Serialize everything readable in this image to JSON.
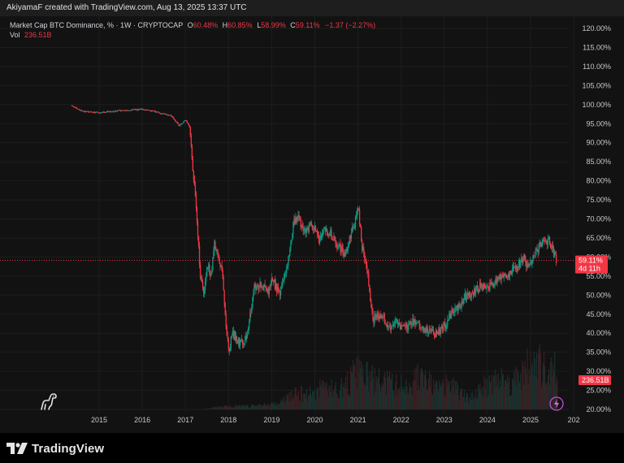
{
  "header": {
    "credit": "AkiyamaF created with TradingView.com, Aug 13, 2025 13:37 UTC"
  },
  "legend": {
    "title": "Market Cap BTC Dominance, % · 1W · CRYPTOCAP",
    "open_key": "O",
    "open_value": "60.48%",
    "high_key": "H",
    "high_value": "60.85%",
    "low_key": "L",
    "low_value": "58.99%",
    "close_key": "C",
    "close_value": "59.11%",
    "change": "−1.37 (−2.27%)",
    "vol_key": "Vol",
    "vol_value": "236.51B"
  },
  "price_tag": {
    "value": "59.11%",
    "countdown": "4d 11h"
  },
  "volume_tag": "236.51B",
  "footer": {
    "brand": "TradingView"
  },
  "colors": {
    "up": "#089981",
    "down": "#f23645",
    "background": "#121212",
    "grid": "#1d1d1d"
  },
  "icons": {
    "bottom_left": "dinosaur-icon",
    "bottom_right": "lightning-icon",
    "footer": "tradingview-logo-icon"
  },
  "chart_data": {
    "type": "candlestick",
    "y_ticks": [
      "120.00%",
      "115.00%",
      "110.00%",
      "105.00%",
      "100.00%",
      "95.00%",
      "90.00%",
      "85.00%",
      "80.00%",
      "75.00%",
      "70.00%",
      "65.00%",
      "60.00%",
      "55.00%",
      "50.00%",
      "45.00%",
      "40.00%",
      "35.00%",
      "30.00%",
      "25.00%",
      "20.00%"
    ],
    "x_ticks": [
      "2015",
      "2016",
      "2017",
      "2018",
      "2019",
      "2020",
      "2021",
      "2022",
      "2023",
      "2024",
      "2025",
      "202"
    ],
    "ylim": [
      20,
      120
    ],
    "price_line": 59.11,
    "dominance_series": [
      {
        "date": "2014-05",
        "value": 99.8
      },
      {
        "date": "2014-08",
        "value": 98.3
      },
      {
        "date": "2015-01",
        "value": 97.9
      },
      {
        "date": "2015-06",
        "value": 98.4
      },
      {
        "date": "2016-01",
        "value": 98.8
      },
      {
        "date": "2016-05",
        "value": 98.0
      },
      {
        "date": "2016-09",
        "value": 97.0
      },
      {
        "date": "2016-11",
        "value": 94.5
      },
      {
        "date": "2017-01",
        "value": 96.0
      },
      {
        "date": "2017-02",
        "value": 94.0
      },
      {
        "date": "2017-03",
        "value": 82.0
      },
      {
        "date": "2017-04",
        "value": 71.0
      },
      {
        "date": "2017-05",
        "value": 55.0
      },
      {
        "date": "2017-06",
        "value": 51.0
      },
      {
        "date": "2017-07",
        "value": 58.0
      },
      {
        "date": "2017-08",
        "value": 55.0
      },
      {
        "date": "2017-09",
        "value": 64.0
      },
      {
        "date": "2017-10",
        "value": 60.0
      },
      {
        "date": "2017-11",
        "value": 57.0
      },
      {
        "date": "2017-12",
        "value": 43.0
      },
      {
        "date": "2018-01",
        "value": 35.5
      },
      {
        "date": "2018-02",
        "value": 40.0
      },
      {
        "date": "2018-04",
        "value": 37.5
      },
      {
        "date": "2018-06",
        "value": 39.0
      },
      {
        "date": "2018-08",
        "value": 52.0
      },
      {
        "date": "2018-10",
        "value": 52.5
      },
      {
        "date": "2018-12",
        "value": 51.0
      },
      {
        "date": "2019-01",
        "value": 54.0
      },
      {
        "date": "2019-03",
        "value": 50.5
      },
      {
        "date": "2019-05",
        "value": 57.0
      },
      {
        "date": "2019-06",
        "value": 63.0
      },
      {
        "date": "2019-07",
        "value": 69.0
      },
      {
        "date": "2019-08",
        "value": 70.5
      },
      {
        "date": "2019-10",
        "value": 67.0
      },
      {
        "date": "2019-12",
        "value": 68.0
      },
      {
        "date": "2020-01",
        "value": 67.0
      },
      {
        "date": "2020-02",
        "value": 64.0
      },
      {
        "date": "2020-03",
        "value": 67.0
      },
      {
        "date": "2020-05",
        "value": 66.5
      },
      {
        "date": "2020-07",
        "value": 63.5
      },
      {
        "date": "2020-09",
        "value": 60.5
      },
      {
        "date": "2020-10",
        "value": 63.0
      },
      {
        "date": "2020-12",
        "value": 69.0
      },
      {
        "date": "2021-01",
        "value": 73.0
      },
      {
        "date": "2021-02",
        "value": 62.0
      },
      {
        "date": "2021-03",
        "value": 60.0
      },
      {
        "date": "2021-05",
        "value": 43.0
      },
      {
        "date": "2021-06",
        "value": 45.0
      },
      {
        "date": "2021-08",
        "value": 44.5
      },
      {
        "date": "2021-09",
        "value": 41.0
      },
      {
        "date": "2021-11",
        "value": 43.0
      },
      {
        "date": "2022-01",
        "value": 41.5
      },
      {
        "date": "2022-03",
        "value": 42.0
      },
      {
        "date": "2022-05",
        "value": 43.5
      },
      {
        "date": "2022-07",
        "value": 41.5
      },
      {
        "date": "2022-09",
        "value": 40.5
      },
      {
        "date": "2022-11",
        "value": 40.0
      },
      {
        "date": "2023-01",
        "value": 42.0
      },
      {
        "date": "2023-03",
        "value": 46.0
      },
      {
        "date": "2023-05",
        "value": 47.0
      },
      {
        "date": "2023-07",
        "value": 50.0
      },
      {
        "date": "2023-09",
        "value": 50.5
      },
      {
        "date": "2023-11",
        "value": 52.5
      },
      {
        "date": "2024-01",
        "value": 52.0
      },
      {
        "date": "2024-03",
        "value": 53.5
      },
      {
        "date": "2024-05",
        "value": 55.0
      },
      {
        "date": "2024-07",
        "value": 55.5
      },
      {
        "date": "2024-09",
        "value": 57.5
      },
      {
        "date": "2024-11",
        "value": 59.5
      },
      {
        "date": "2024-12",
        "value": 57.5
      },
      {
        "date": "2025-02",
        "value": 61.0
      },
      {
        "date": "2025-04",
        "value": 63.5
      },
      {
        "date": "2025-06",
        "value": 64.5
      },
      {
        "date": "2025-07",
        "value": 61.5
      },
      {
        "date": "2025-08",
        "value": 59.1
      }
    ],
    "volume_series": [
      {
        "date": "2017-06",
        "value": 0.01
      },
      {
        "date": "2017-12",
        "value": 0.05
      },
      {
        "date": "2018-06",
        "value": 0.06
      },
      {
        "date": "2019-03",
        "value": 0.1
      },
      {
        "date": "2019-06",
        "value": 0.25
      },
      {
        "date": "2019-09",
        "value": 0.28
      },
      {
        "date": "2020-01",
        "value": 0.3
      },
      {
        "date": "2020-03",
        "value": 0.45
      },
      {
        "date": "2020-06",
        "value": 0.35
      },
      {
        "date": "2020-09",
        "value": 0.4
      },
      {
        "date": "2021-01",
        "value": 0.7
      },
      {
        "date": "2021-04",
        "value": 0.55
      },
      {
        "date": "2021-07",
        "value": 0.5
      },
      {
        "date": "2021-11",
        "value": 0.45
      },
      {
        "date": "2022-02",
        "value": 0.4
      },
      {
        "date": "2022-06",
        "value": 0.6
      },
      {
        "date": "2022-11",
        "value": 0.35
      },
      {
        "date": "2023-03",
        "value": 0.45
      },
      {
        "date": "2023-07",
        "value": 0.2
      },
      {
        "date": "2023-11",
        "value": 0.35
      },
      {
        "date": "2024-03",
        "value": 0.6
      },
      {
        "date": "2024-07",
        "value": 0.45
      },
      {
        "date": "2024-11",
        "value": 0.7
      },
      {
        "date": "2025-03",
        "value": 0.85
      },
      {
        "date": "2025-06",
        "value": 0.55
      },
      {
        "date": "2025-08",
        "value": 0.75
      }
    ]
  }
}
